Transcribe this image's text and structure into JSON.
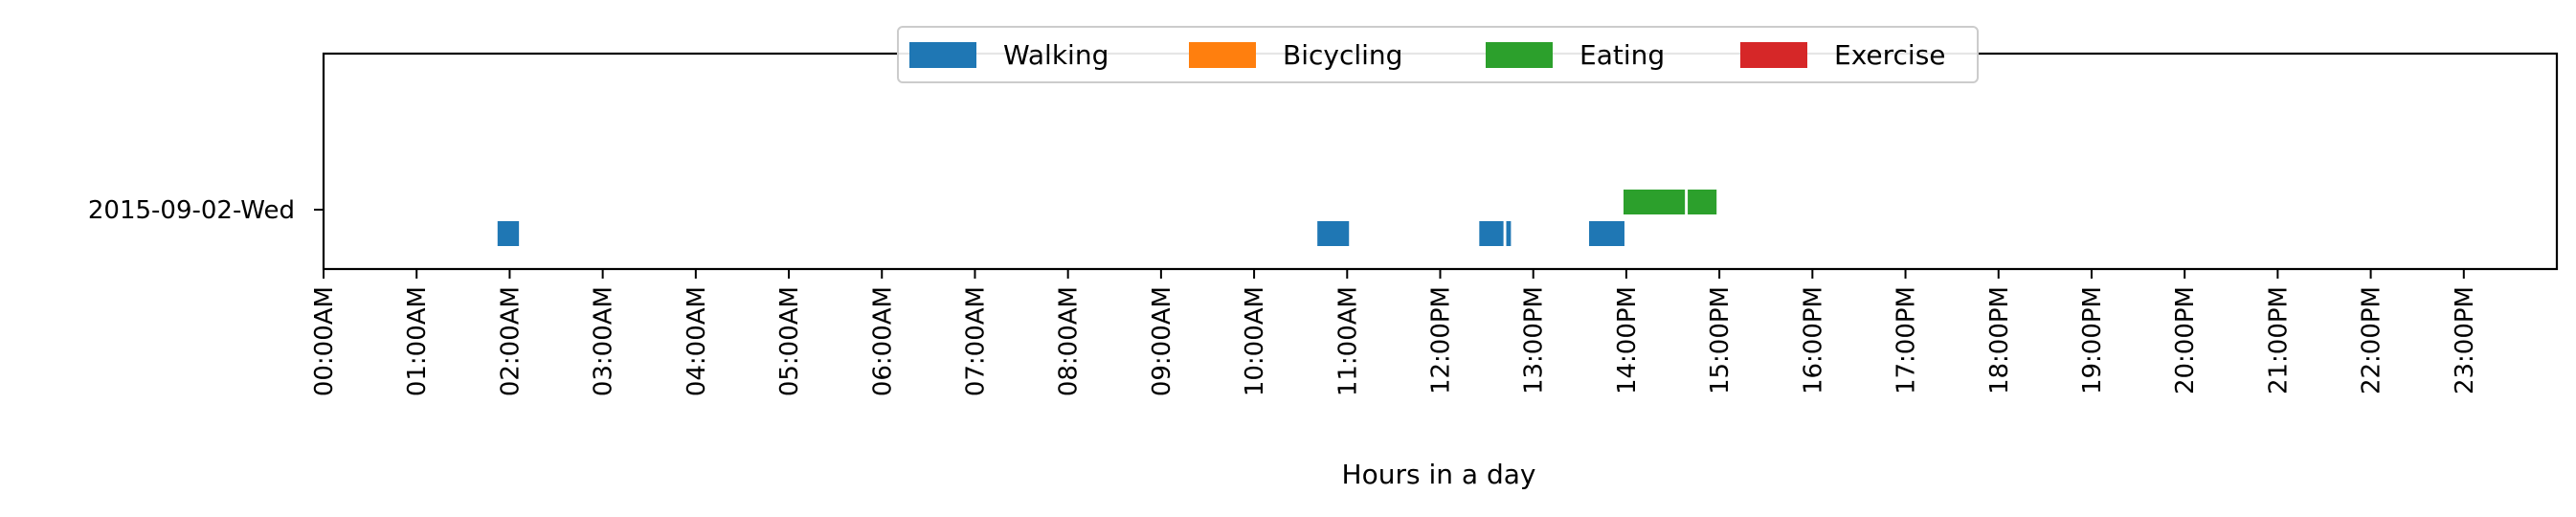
{
  "chart_data": {
    "type": "timeline",
    "xlabel": "Hours in a day",
    "ylabel": "",
    "xlim": [
      0,
      24
    ],
    "x_ticks": [
      "00:00AM",
      "01:00AM",
      "02:00AM",
      "03:00AM",
      "04:00AM",
      "05:00AM",
      "06:00AM",
      "07:00AM",
      "08:00AM",
      "09:00AM",
      "10:00AM",
      "11:00AM",
      "12:00PM",
      "13:00PM",
      "14:00PM",
      "15:00PM",
      "16:00PM",
      "17:00PM",
      "18:00PM",
      "19:00PM",
      "20:00PM",
      "21:00PM",
      "22:00PM",
      "23:00PM"
    ],
    "y_categories": [
      "2015-09-02-Wed"
    ],
    "legend": {
      "placement": "top-center",
      "entries": [
        {
          "name": "Walking",
          "color": "#1f77b4"
        },
        {
          "name": "Bicycling",
          "color": "#ff7f0e"
        },
        {
          "name": "Eating",
          "color": "#2ca02c"
        },
        {
          "name": "Exercise",
          "color": "#d62728"
        }
      ]
    },
    "series": [
      {
        "name": "Walking",
        "color": "#1f77b4",
        "segments": [
          {
            "day": "2015-09-02-Wed",
            "start": 1.87,
            "end": 2.1
          },
          {
            "day": "2015-09-02-Wed",
            "start": 10.68,
            "end": 11.02
          },
          {
            "day": "2015-09-02-Wed",
            "start": 12.42,
            "end": 12.68
          },
          {
            "day": "2015-09-02-Wed",
            "start": 12.71,
            "end": 12.76
          },
          {
            "day": "2015-09-02-Wed",
            "start": 13.6,
            "end": 13.98
          }
        ]
      },
      {
        "name": "Bicycling",
        "color": "#ff7f0e",
        "segments": []
      },
      {
        "name": "Eating",
        "color": "#2ca02c",
        "segments": [
          {
            "day": "2015-09-02-Wed",
            "start": 13.97,
            "end": 14.63
          },
          {
            "day": "2015-09-02-Wed",
            "start": 14.66,
            "end": 14.97
          }
        ]
      },
      {
        "name": "Exercise",
        "color": "#d62728",
        "segments": []
      }
    ]
  }
}
